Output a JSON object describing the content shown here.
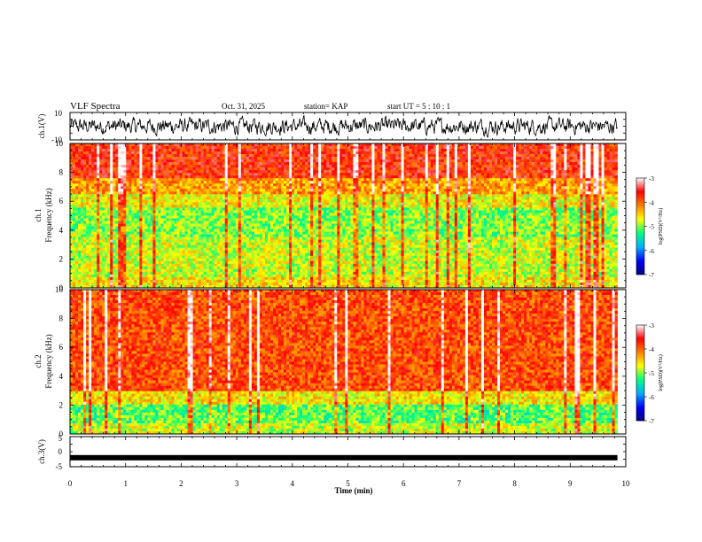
{
  "header": {
    "title": "VLF Spectra",
    "date": "Oct. 31, 2025",
    "station": "station= KAP",
    "start": "start  UT =   5  : 10 : 1"
  },
  "chart_data": [
    {
      "type": "line",
      "panel": "ch1-waveform",
      "ylabel": "ch.1(V)",
      "ylim": [
        -10,
        10
      ],
      "ytick_labels": [
        "10",
        "-10"
      ],
      "xlim": [
        0,
        10
      ],
      "description_values": "noise waveform, amplitude roughly -6 to 6 V"
    },
    {
      "type": "heatmap",
      "panel": "ch1-spectrogram",
      "ylabel": "ch.1",
      "ylabel2": "Frequency (kHz)",
      "ylim": [
        0,
        10
      ],
      "ytick_labels": [
        "0",
        "2",
        "4",
        "6",
        "8",
        "10"
      ],
      "xlim": [
        0,
        10
      ],
      "colorbar": {
        "label": "log(PSD)(V²/Hz)",
        "range": [
          -7,
          -3
        ],
        "tick_labels": [
          "-3",
          "-4",
          "-5",
          "-6",
          "-7"
        ]
      }
    },
    {
      "type": "heatmap",
      "panel": "ch2-spectrogram",
      "ylabel": "ch.2",
      "ylabel2": "Frequency (kHz)",
      "ylim": [
        0,
        10
      ],
      "ytick_labels": [
        "0",
        "2",
        "4",
        "6",
        "8",
        "10"
      ],
      "xlim": [
        0,
        10
      ],
      "colorbar": {
        "label": "log(PSD)(V²/Hz)",
        "range": [
          -7,
          -3
        ],
        "tick_labels": [
          "-3",
          "-4",
          "-5",
          "-6",
          "-7"
        ]
      }
    },
    {
      "type": "line",
      "panel": "ch3-waveform",
      "ylabel": "ch.3(V)",
      "ylim": [
        -5,
        5
      ],
      "ytick_labels": [
        "5",
        "0",
        "-5"
      ],
      "xlim": [
        0,
        10
      ],
      "level": -2
    }
  ],
  "xaxis": {
    "label": "Time (min)",
    "range": [
      0,
      10
    ],
    "data_end": 9.85,
    "tick_labels": [
      "0",
      "1",
      "2",
      "3",
      "4",
      "5",
      "6",
      "7",
      "8",
      "9",
      "10"
    ]
  },
  "colors": {
    "frame": "#000000",
    "trace": "#000000",
    "cmap": [
      "#000080",
      "#0000ff",
      "#00b0ff",
      "#00ff80",
      "#ffff00",
      "#ff8000",
      "#ff0000",
      "#ffffff"
    ]
  }
}
